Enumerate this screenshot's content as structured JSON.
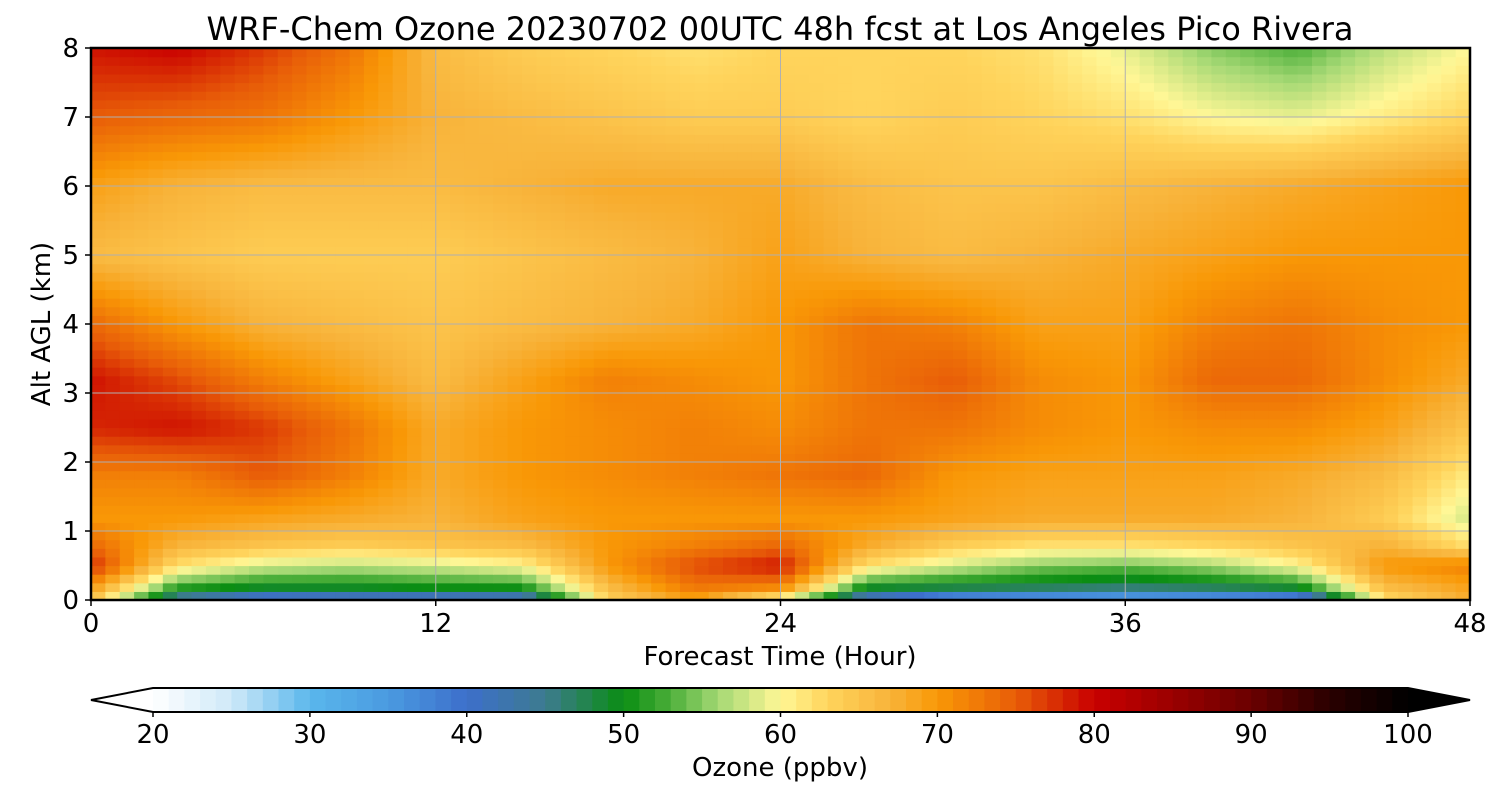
{
  "chart_data": {
    "type": "heatmap",
    "title": "WRF-Chem Ozone  20230702 00UTC 48h fcst at Los Angeles Pico Rivera",
    "xlabel": "Forecast Time (Hour)",
    "ylabel": "Alt AGL (km)",
    "xlim": [
      0,
      48
    ],
    "ylim": [
      0,
      8
    ],
    "x_ticks": [
      "0",
      "12",
      "24",
      "36",
      "48"
    ],
    "y_ticks": [
      "0",
      "1",
      "2",
      "3",
      "4",
      "5",
      "6",
      "7",
      "8"
    ],
    "grid": true,
    "x": [
      0,
      3,
      6,
      9,
      12,
      15,
      18,
      21,
      24,
      27,
      30,
      33,
      36,
      39,
      42,
      45,
      48
    ],
    "y": [
      0.05,
      0.2,
      0.5,
      0.8,
      1.2,
      1.8,
      2.5,
      3.2,
      4.0,
      5.0,
      6.0,
      7.0,
      8.0
    ],
    "z": [
      [
        66,
        45,
        40,
        41,
        41,
        42,
        64,
        70,
        62,
        42,
        37,
        36,
        35,
        36,
        38,
        63,
        68
      ],
      [
        70,
        52,
        50,
        50,
        51,
        51,
        66,
        73,
        72,
        50,
        49,
        48,
        47,
        48,
        50,
        66,
        69
      ],
      [
        78,
        62,
        58,
        57,
        58,
        60,
        70,
        76,
        79,
        62,
        58,
        55,
        54,
        56,
        60,
        70,
        72
      ],
      [
        74,
        67,
        65,
        64,
        65,
        66,
        70,
        72,
        74,
        68,
        64,
        62,
        62,
        63,
        65,
        67,
        62
      ],
      [
        70,
        70,
        69,
        68,
        67,
        69,
        70,
        70,
        70,
        70,
        69,
        68,
        68,
        68,
        67,
        64,
        58
      ],
      [
        72,
        72,
        75,
        72,
        68,
        70,
        71,
        72,
        73,
        74,
        70,
        69,
        69,
        69,
        68,
        66,
        61
      ],
      [
        78,
        79,
        77,
        73,
        68,
        70,
        71,
        72,
        71,
        73,
        73,
        71,
        70,
        71,
        71,
        69,
        65
      ],
      [
        79,
        76,
        72,
        69,
        66,
        69,
        72,
        71,
        70,
        73,
        75,
        71,
        70,
        74,
        74,
        71,
        68
      ],
      [
        74,
        70,
        67,
        66,
        65,
        66,
        67,
        68,
        70,
        73,
        72,
        69,
        69,
        72,
        73,
        71,
        70
      ],
      [
        66,
        65,
        64,
        64,
        64,
        65,
        66,
        67,
        69,
        67,
        66,
        67,
        68,
        69,
        70,
        70,
        70
      ],
      [
        69,
        67,
        66,
        66,
        66,
        67,
        68,
        68,
        68,
        66,
        65,
        65,
        66,
        67,
        68,
        69,
        70
      ],
      [
        75,
        74,
        73,
        70,
        67,
        66,
        65,
        64,
        64,
        63,
        64,
        63,
        62,
        60,
        59,
        61,
        63
      ],
      [
        79,
        80,
        77,
        73,
        66,
        64,
        63,
        62,
        63,
        63,
        63,
        62,
        59,
        55,
        53,
        57,
        60
      ]
    ],
    "colorbar": {
      "label": "Ozone  (ppbv)",
      "min": 20,
      "max": 100,
      "extend": "both",
      "ticks": [
        "20",
        "30",
        "40",
        "50",
        "60",
        "70",
        "80",
        "90",
        "100"
      ],
      "stops": [
        {
          "v": 20,
          "c": "#ffffff"
        },
        {
          "v": 25,
          "c": "#cfe9f8"
        },
        {
          "v": 30,
          "c": "#5ab7ec"
        },
        {
          "v": 35,
          "c": "#4a9ae0"
        },
        {
          "v": 40,
          "c": "#3d6fcb"
        },
        {
          "v": 45,
          "c": "#3d7b8f"
        },
        {
          "v": 50,
          "c": "#0a8d12"
        },
        {
          "v": 53,
          "c": "#4caf3a"
        },
        {
          "v": 56,
          "c": "#a4d874"
        },
        {
          "v": 60,
          "c": "#fff796"
        },
        {
          "v": 63,
          "c": "#ffd45c"
        },
        {
          "v": 67,
          "c": "#f8b33a"
        },
        {
          "v": 70,
          "c": "#f99806"
        },
        {
          "v": 75,
          "c": "#e85d08"
        },
        {
          "v": 80,
          "c": "#c90000"
        },
        {
          "v": 85,
          "c": "#9a0000"
        },
        {
          "v": 90,
          "c": "#6a0000"
        },
        {
          "v": 95,
          "c": "#2a0000"
        },
        {
          "v": 100,
          "c": "#000000"
        }
      ]
    }
  }
}
